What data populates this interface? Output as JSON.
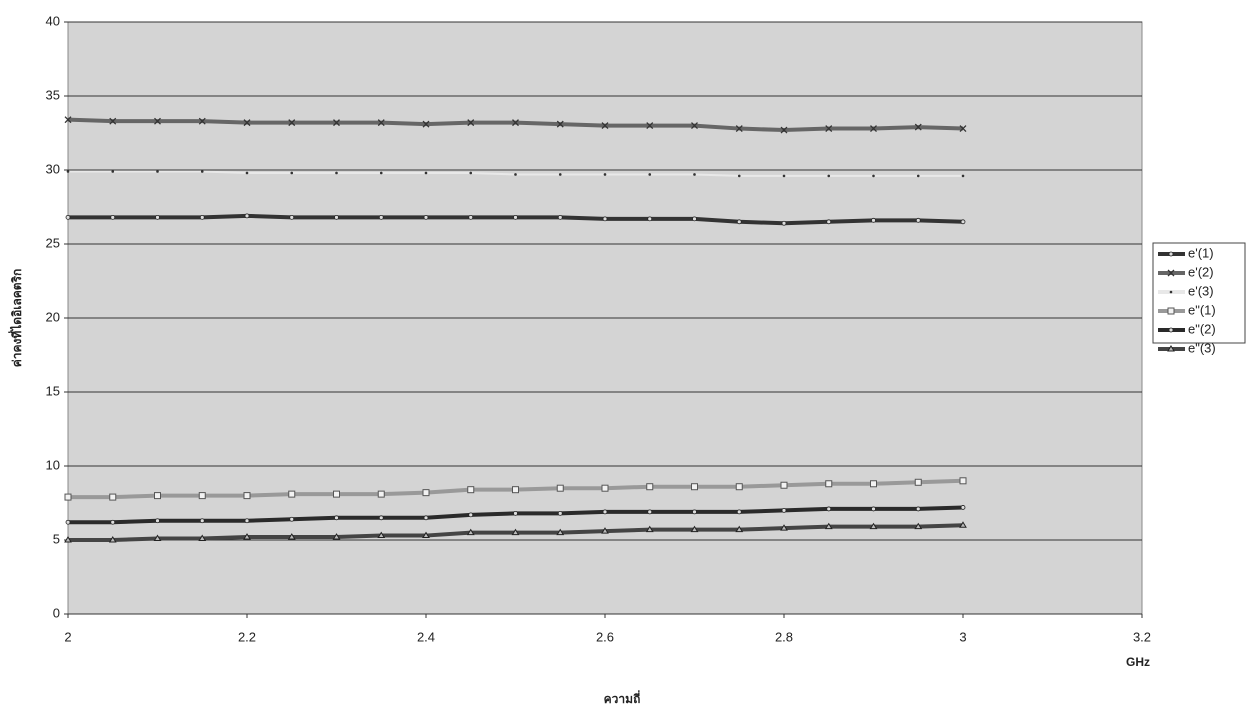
{
  "chart_data": {
    "type": "line",
    "y_label": "ค่าคงที่ไดอิเลคตริก",
    "x_label": "ความถี่",
    "x_unit": "GHz",
    "x": [
      2,
      2.05,
      2.1,
      2.15,
      2.2,
      2.25,
      2.3,
      2.35,
      2.4,
      2.45,
      2.5,
      2.55,
      2.6,
      2.65,
      2.7,
      2.75,
      2.8,
      2.85,
      2.9,
      2.95,
      3
    ],
    "series": [
      {
        "name": "e'(1)",
        "color": "#333333",
        "marker": "circle",
        "values": [
          26.8,
          26.8,
          26.8,
          26.8,
          26.9,
          26.8,
          26.8,
          26.8,
          26.8,
          26.8,
          26.8,
          26.8,
          26.7,
          26.7,
          26.7,
          26.5,
          26.4,
          26.5,
          26.6,
          26.6,
          26.5
        ]
      },
      {
        "name": "e'(2)",
        "color": "#666666",
        "marker": "x",
        "values": [
          33.4,
          33.3,
          33.3,
          33.3,
          33.2,
          33.2,
          33.2,
          33.2,
          33.1,
          33.2,
          33.2,
          33.1,
          33.0,
          33.0,
          33.0,
          32.8,
          32.7,
          32.8,
          32.8,
          32.9,
          32.8
        ]
      },
      {
        "name": "e'(3)",
        "color": "#e8e8e8",
        "marker": "dot",
        "values": [
          29.9,
          29.9,
          29.9,
          29.9,
          29.8,
          29.8,
          29.8,
          29.8,
          29.8,
          29.8,
          29.7,
          29.7,
          29.7,
          29.7,
          29.7,
          29.6,
          29.6,
          29.6,
          29.6,
          29.6,
          29.6
        ]
      },
      {
        "name": "e\"(1)",
        "color": "#999999",
        "marker": "square",
        "values": [
          7.9,
          7.9,
          8.0,
          8.0,
          8.0,
          8.1,
          8.1,
          8.1,
          8.2,
          8.4,
          8.4,
          8.5,
          8.5,
          8.6,
          8.6,
          8.6,
          8.7,
          8.8,
          8.8,
          8.9,
          9.0
        ]
      },
      {
        "name": "e\"(2)",
        "color": "#2a2a2a",
        "marker": "circle",
        "values": [
          6.2,
          6.2,
          6.3,
          6.3,
          6.3,
          6.4,
          6.5,
          6.5,
          6.5,
          6.7,
          6.8,
          6.8,
          6.9,
          6.9,
          6.9,
          6.9,
          7.0,
          7.1,
          7.1,
          7.1,
          7.2
        ]
      },
      {
        "name": "e\"(3)",
        "color": "#444444",
        "marker": "triangle",
        "values": [
          5.0,
          5.0,
          5.1,
          5.1,
          5.2,
          5.2,
          5.2,
          5.3,
          5.3,
          5.5,
          5.5,
          5.5,
          5.6,
          5.7,
          5.7,
          5.7,
          5.8,
          5.9,
          5.9,
          5.9,
          6.0
        ]
      }
    ],
    "xlim": [
      2,
      3.2
    ],
    "xticks": [
      2,
      2.2,
      2.4,
      2.6,
      2.8,
      3,
      3.2
    ],
    "ylim": [
      0,
      40
    ],
    "yticks": [
      0,
      5,
      10,
      15,
      20,
      25,
      30,
      35,
      40
    ],
    "grid": true,
    "legend": "right"
  }
}
